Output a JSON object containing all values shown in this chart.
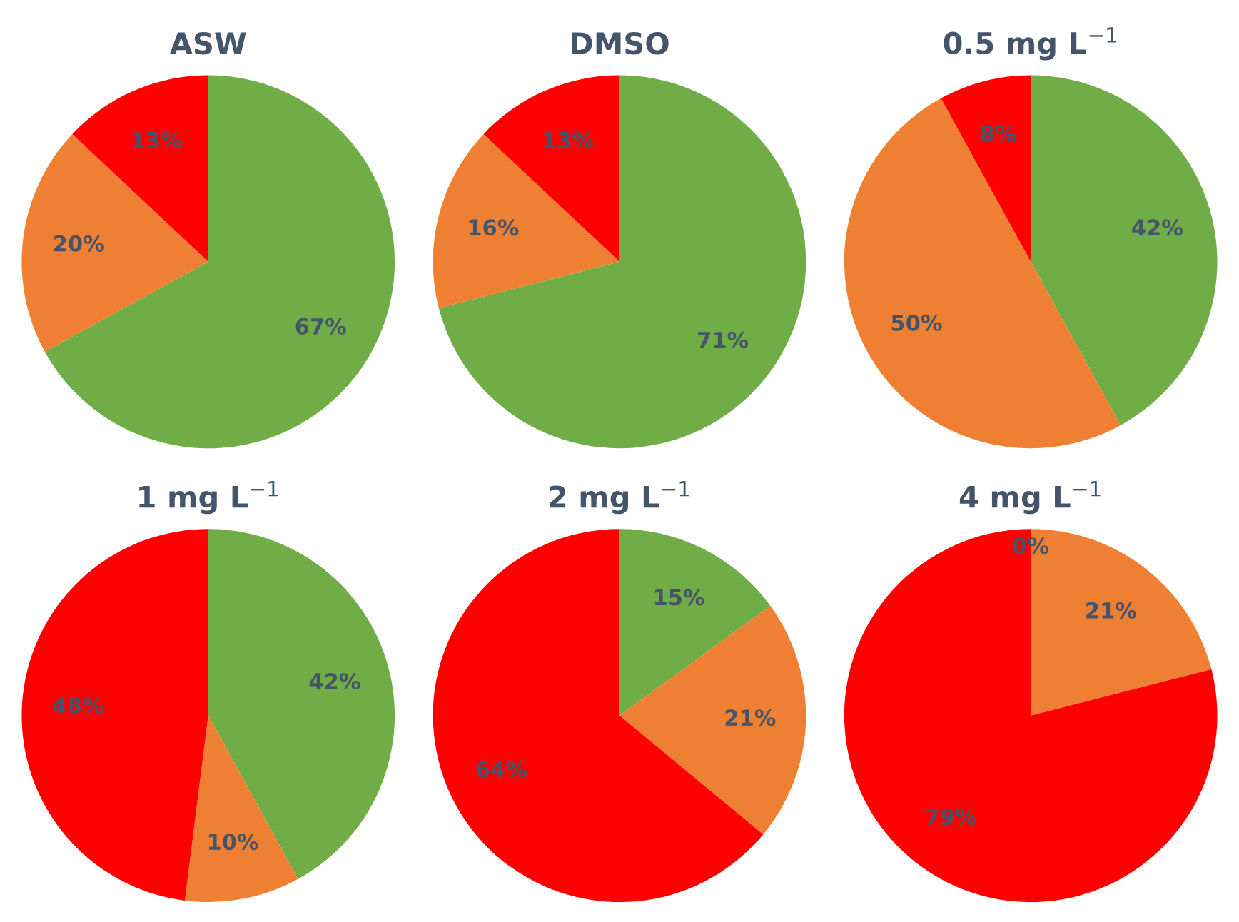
{
  "chart_data": [
    {
      "type": "pie",
      "title": "ASW",
      "categories": [
        null,
        null,
        null
      ],
      "values": [
        67,
        20,
        13
      ],
      "colors": [
        "#70ad47",
        "#ef7f32",
        "#ff0000"
      ],
      "value_labels": [
        "67%",
        "20%",
        "13%"
      ]
    },
    {
      "type": "pie",
      "title": "DMSO",
      "categories": [
        null,
        null,
        null
      ],
      "values": [
        71,
        16,
        13
      ],
      "colors": [
        "#70ad47",
        "#ef7f32",
        "#ff0000"
      ],
      "value_labels": [
        "71%",
        "16%",
        "13%"
      ]
    },
    {
      "type": "pie",
      "title": "0.5 mg L$^{−1}$",
      "categories": [
        null,
        null,
        null
      ],
      "values": [
        42,
        50,
        8
      ],
      "colors": [
        "#70ad47",
        "#ef7f32",
        "#ff0000"
      ],
      "value_labels": [
        "42%",
        "50%",
        "8%"
      ]
    },
    {
      "type": "pie",
      "title": "1 mg L$^{−1}$",
      "categories": [
        null,
        null,
        null
      ],
      "values": [
        42,
        10,
        48
      ],
      "colors": [
        "#70ad47",
        "#ef7f32",
        "#ff0000"
      ],
      "value_labels": [
        "42%",
        "10%",
        "48%"
      ]
    },
    {
      "type": "pie",
      "title": "2 mg L$^{−1}$",
      "categories": [
        null,
        null,
        null
      ],
      "values": [
        15,
        21,
        64
      ],
      "colors": [
        "#70ad47",
        "#ef7f32",
        "#ff0000"
      ],
      "value_labels": [
        "15%",
        "21%",
        "64%"
      ]
    },
    {
      "type": "pie",
      "title": "4 mg L$^{−1}$",
      "categories": [
        null,
        null,
        null
      ],
      "values": [
        0,
        21,
        79
      ],
      "colors": [
        "#70ad47",
        "#ef7f32",
        "#ff0000"
      ],
      "value_labels": [
        "0%",
        "21%",
        "79%"
      ]
    }
  ]
}
